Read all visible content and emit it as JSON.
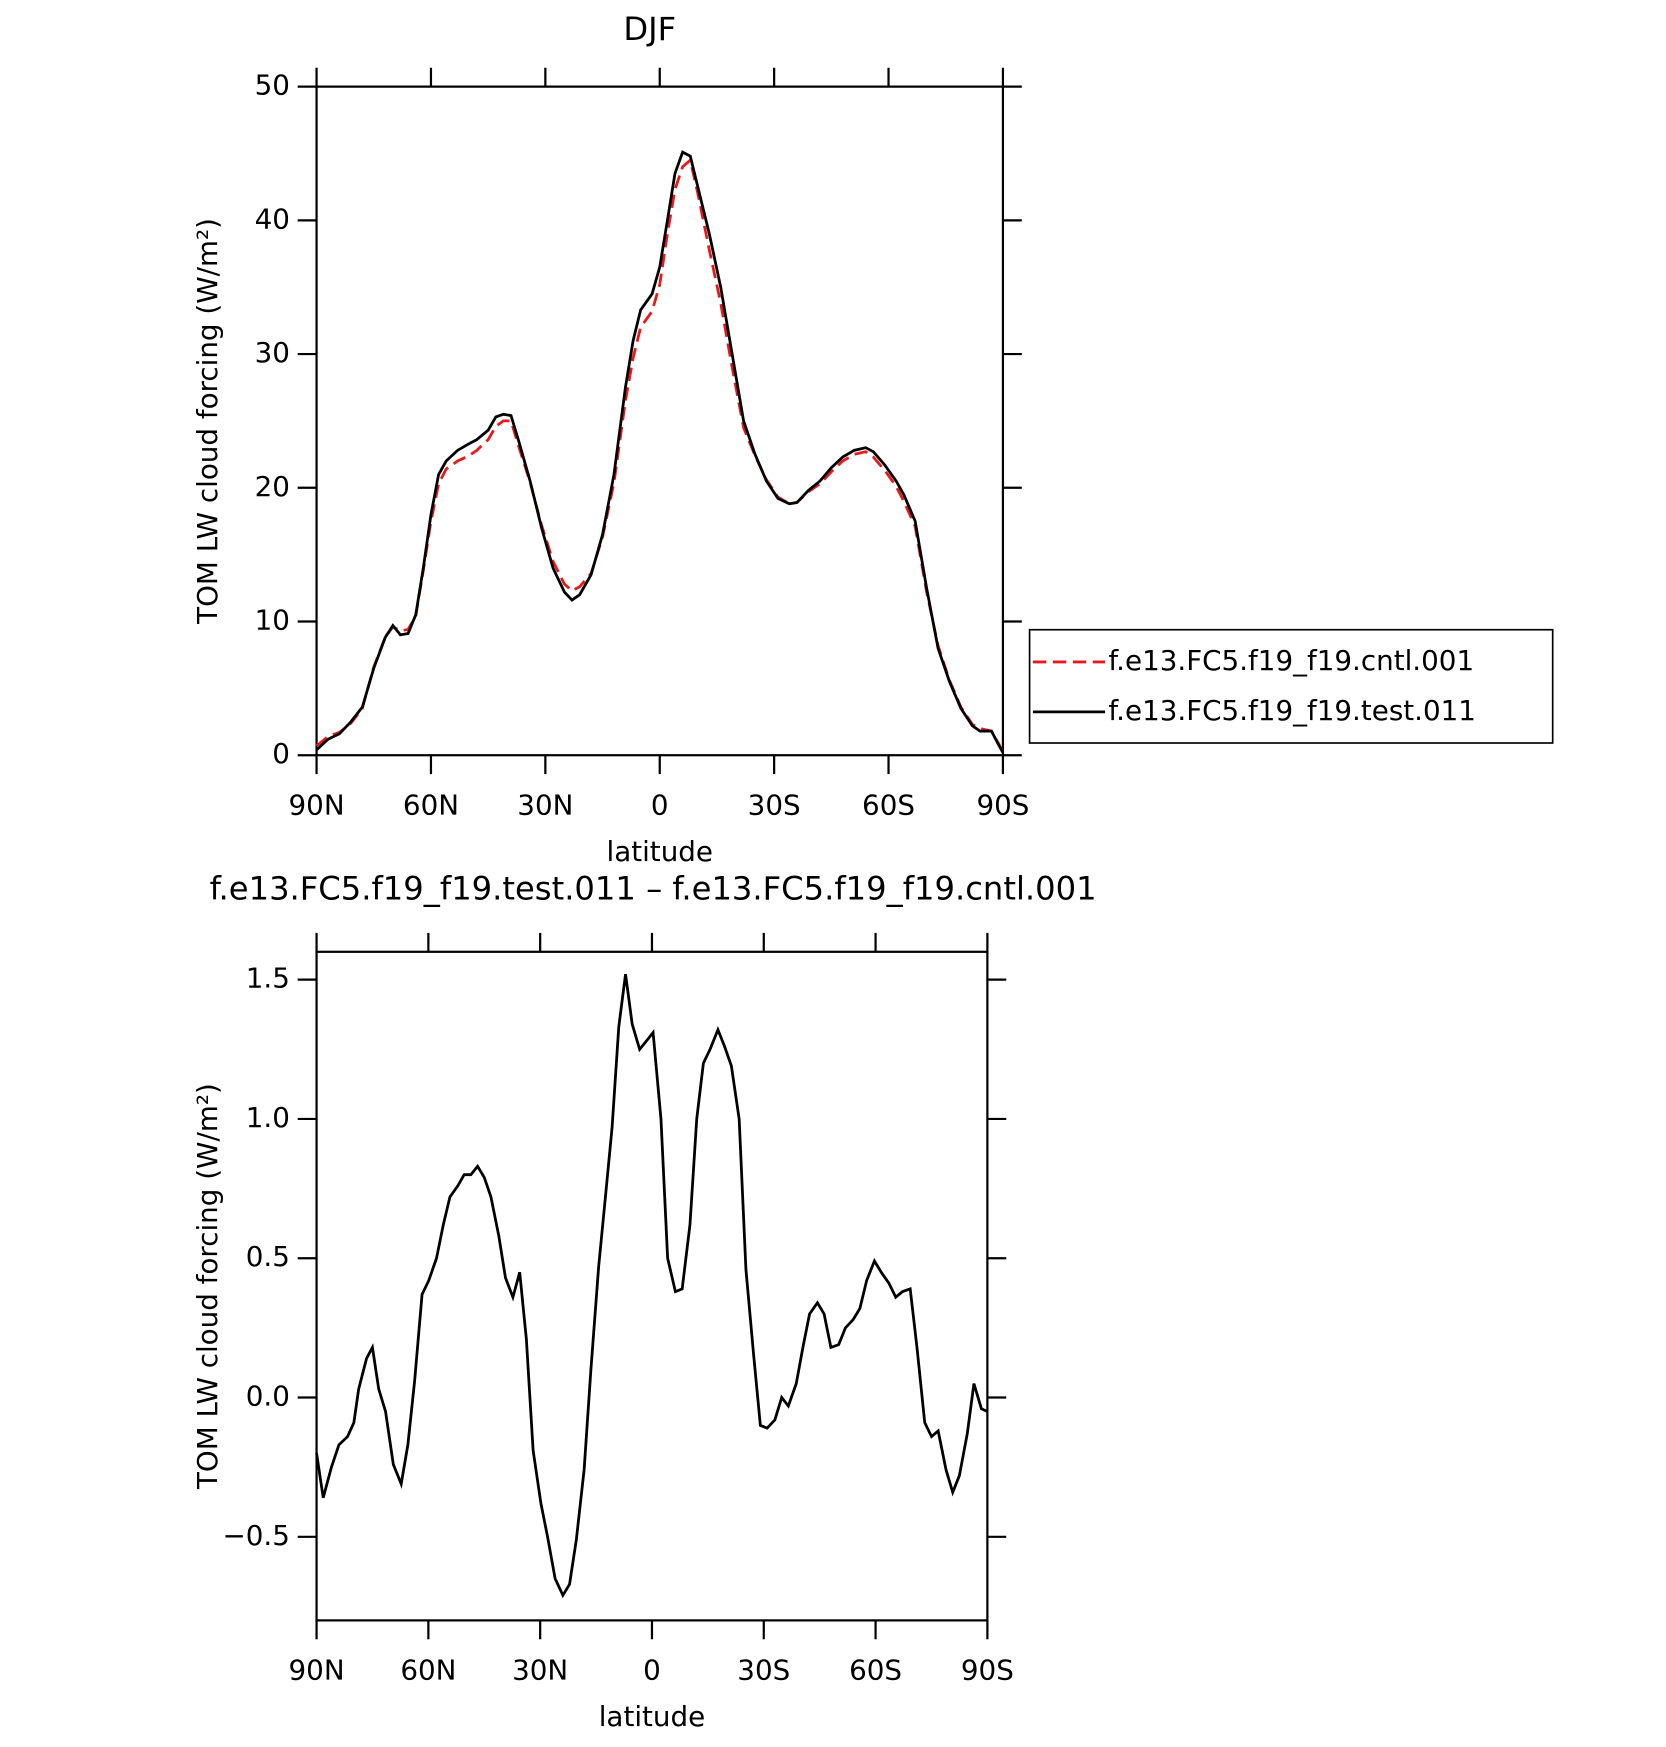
{
  "chart_data": [
    {
      "type": "line",
      "title": "DJF",
      "xlabel": "latitude",
      "ylabel": "TOM LW cloud forcing (W/m²)",
      "x": [
        90,
        87,
        84,
        81,
        78,
        75,
        72,
        70,
        68,
        66,
        64,
        62,
        60,
        58,
        56,
        53,
        50,
        48,
        45,
        43,
        41,
        39,
        37,
        34,
        31,
        28,
        25,
        23,
        21,
        18,
        15,
        12,
        9,
        7,
        5,
        2,
        0,
        -2,
        -4,
        -6,
        -8,
        -10,
        -13,
        -16,
        -19,
        -22,
        -25,
        -28,
        -31,
        -34,
        -36,
        -39,
        -42,
        -45,
        -48,
        -51,
        -54,
        -56,
        -59,
        -62,
        -64,
        -67,
        -70,
        -73,
        -76,
        -79,
        -82,
        -84,
        -87,
        -89,
        -90
      ],
      "series": [
        {
          "name": "f.e13.FC5.f19_f19.cntl.001",
          "color": "#e8181c",
          "dash": true,
          "values": [
            0.7,
            1.4,
            1.7,
            2.4,
            3.5,
            6.6,
            8.8,
            9.6,
            9.3,
            9.4,
            10.4,
            13.8,
            17.5,
            20.3,
            21.4,
            22.0,
            22.4,
            22.8,
            23.6,
            24.6,
            25.0,
            25.0,
            23.1,
            20.4,
            17.2,
            14.5,
            12.8,
            12.3,
            12.6,
            13.6,
            16.3,
            20.4,
            26.5,
            29.7,
            32.0,
            33.2,
            35.2,
            39.0,
            42.3,
            44.0,
            44.5,
            42.0,
            37.8,
            33.8,
            29.0,
            24.5,
            22.4,
            20.6,
            19.3,
            18.8,
            18.9,
            19.7,
            20.3,
            21.2,
            22.0,
            22.5,
            22.7,
            22.3,
            21.3,
            20.1,
            19.0,
            17.1,
            12.2,
            8.2,
            5.6,
            3.6,
            2.3,
            2.0,
            1.8,
            0.8,
            0.2
          ]
        },
        {
          "name": "f.e13.FC5.f19_f19.test.011",
          "color": "#000000",
          "dash": false,
          "values": [
            0.4,
            1.2,
            1.6,
            2.5,
            3.6,
            6.5,
            8.8,
            9.7,
            9.0,
            9.1,
            10.5,
            14,
            18,
            21,
            22,
            22.8,
            23.3,
            23.6,
            24.3,
            25.3,
            25.5,
            25.4,
            23.5,
            20.5,
            17,
            14,
            12.2,
            11.6,
            12.0,
            13.5,
            16.5,
            21,
            27.5,
            31,
            33.3,
            34.5,
            36.5,
            40,
            43.5,
            45.1,
            44.8,
            42.5,
            39,
            35,
            30,
            25,
            22.5,
            20.5,
            19.2,
            18.8,
            18.9,
            19.8,
            20.5,
            21.5,
            22.3,
            22.8,
            23,
            22.7,
            21.7,
            20.5,
            19.5,
            17.5,
            12.5,
            8,
            5.5,
            3.5,
            2.2,
            1.8,
            1.8,
            0.7,
            0.2
          ]
        }
      ],
      "xlim": [
        90,
        -90
      ],
      "xticks": [
        {
          "value": 90,
          "label": "90N"
        },
        {
          "value": 60,
          "label": "60N"
        },
        {
          "value": 30,
          "label": "30N"
        },
        0,
        {
          "value": -30,
          "label": "30S"
        },
        {
          "value": -60,
          "label": "60S"
        },
        {
          "value": -90,
          "label": "90S"
        }
      ],
      "ylim": [
        0,
        50
      ],
      "yticks": [
        0,
        10,
        20,
        30,
        40,
        50
      ]
    },
    {
      "type": "line",
      "title": "f.e13.FC5.f19_f19.test.011 – f.e13.FC5.f19_f19.cntl.001",
      "xlabel": "latitude",
      "ylabel": "TOM LW cloud forcing (W/m²)",
      "x": [
        90,
        88.2,
        86,
        84,
        81.7,
        80,
        78.7,
        76.6,
        75,
        73.3,
        71.5,
        69.4,
        67.3,
        65.5,
        63.7,
        61.7,
        59.9,
        57.8,
        56,
        54.2,
        52.1,
        50.4,
        48.6,
        46.8,
        45,
        43.2,
        41.1,
        39.3,
        37.3,
        35.5,
        33.7,
        31.9,
        29.8,
        28,
        26,
        23.9,
        22.1,
        20.3,
        18.2,
        16.4,
        14.3,
        12.5,
        10.7,
        8.9,
        7.1,
        5.3,
        3.3,
        1.5,
        -0.3,
        -2.4,
        -4.2,
        -6.3,
        -8.1,
        -10.2,
        -12,
        -13.8,
        -15.6,
        -17.7,
        -19.5,
        -21.3,
        -23.4,
        -25.2,
        -27.3,
        -29.1,
        -30.9,
        -33,
        -34.8,
        -36.6,
        -38.7,
        -40.5,
        -42.3,
        -44.4,
        -46.2,
        -48,
        -50.1,
        -51.9,
        -54,
        -55.8,
        -57.6,
        -59.7,
        -61.5,
        -63.6,
        -65.4,
        -67.2,
        -69.3,
        -71.1,
        -73.2,
        -75,
        -76.8,
        -78.9,
        -80.7,
        -82.5,
        -84.6,
        -86.4,
        -88.4,
        -90
      ],
      "series": [
        {
          "name": "difference",
          "color": "#000000",
          "dash": false,
          "values": [
            -0.2,
            -0.36,
            -0.25,
            -0.17,
            -0.14,
            -0.09,
            0.03,
            0.14,
            0.18,
            0.03,
            -0.05,
            -0.24,
            -0.31,
            -0.17,
            0.06,
            0.37,
            0.42,
            0.5,
            0.62,
            0.72,
            0.76,
            0.8,
            0.8,
            0.83,
            0.79,
            0.72,
            0.58,
            0.43,
            0.36,
            0.45,
            0.21,
            -0.19,
            -0.38,
            -0.5,
            -0.65,
            -0.71,
            -0.67,
            -0.51,
            -0.26,
            0.1,
            0.47,
            0.72,
            0.97,
            1.33,
            1.52,
            1.34,
            1.25,
            1.28,
            1.31,
            1.0,
            0.5,
            0.38,
            0.39,
            0.62,
            1.0,
            1.2,
            1.25,
            1.32,
            1.26,
            1.19,
            1.0,
            0.46,
            0.15,
            -0.1,
            -0.11,
            -0.08,
            0.0,
            -0.03,
            0.05,
            0.18,
            0.3,
            0.34,
            0.3,
            0.18,
            0.19,
            0.25,
            0.28,
            0.32,
            0.42,
            0.49,
            0.45,
            0.41,
            0.36,
            0.38,
            0.39,
            0.18,
            -0.09,
            -0.14,
            -0.12,
            -0.26,
            -0.34,
            -0.28,
            -0.13,
            0.05,
            -0.04,
            -0.05
          ]
        }
      ],
      "xlim": [
        90,
        -90
      ],
      "xticks": [
        {
          "value": 90,
          "label": "90N"
        },
        {
          "value": 60,
          "label": "60N"
        },
        {
          "value": 30,
          "label": "30N"
        },
        0,
        {
          "value": -30,
          "label": "30S"
        },
        {
          "value": -60,
          "label": "60S"
        },
        {
          "value": -90,
          "label": "90S"
        }
      ],
      "ylim": [
        -0.8,
        1.6
      ],
      "yticks": [
        {
          "value": -0.5,
          "label": "−0.5"
        },
        {
          "value": 0,
          "label": "0.0"
        },
        0.5,
        {
          "value": 1,
          "label": "1.0"
        },
        1.5
      ]
    }
  ]
}
